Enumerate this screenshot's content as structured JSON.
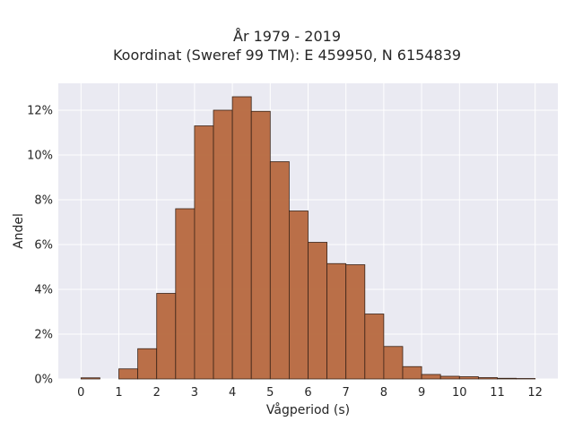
{
  "chart_data": {
    "type": "bar",
    "title": "År 1979 - 2019",
    "subtitle": "Koordinat (Sweref 99 TM): E 459950, N 6154839",
    "xlabel": "Vågperiod (s)",
    "ylabel": "Andel",
    "xlim": [
      -0.6,
      12.6
    ],
    "ylim": [
      0,
      13.2
    ],
    "x_ticks": [
      0,
      1,
      2,
      3,
      4,
      5,
      6,
      7,
      8,
      9,
      10,
      11,
      12
    ],
    "y_ticks": [
      0,
      2,
      4,
      6,
      8,
      10,
      12
    ],
    "y_tick_labels": [
      "0%",
      "2%",
      "4%",
      "6%",
      "8%",
      "10%",
      "12%"
    ],
    "bin_width": 0.5,
    "bins": [
      {
        "x": 0.0,
        "value": 0.05
      },
      {
        "x": 0.5,
        "value": 0.0
      },
      {
        "x": 1.0,
        "value": 0.45
      },
      {
        "x": 1.5,
        "value": 1.35
      },
      {
        "x": 2.0,
        "value": 3.82
      },
      {
        "x": 2.5,
        "value": 7.6
      },
      {
        "x": 3.0,
        "value": 11.3
      },
      {
        "x": 3.5,
        "value": 12.0
      },
      {
        "x": 4.0,
        "value": 12.6
      },
      {
        "x": 4.5,
        "value": 11.95
      },
      {
        "x": 5.0,
        "value": 9.7
      },
      {
        "x": 5.5,
        "value": 7.5
      },
      {
        "x": 6.0,
        "value": 6.1
      },
      {
        "x": 6.5,
        "value": 5.15
      },
      {
        "x": 7.0,
        "value": 5.1
      },
      {
        "x": 7.5,
        "value": 2.9
      },
      {
        "x": 8.0,
        "value": 1.45
      },
      {
        "x": 8.5,
        "value": 0.55
      },
      {
        "x": 9.0,
        "value": 0.2
      },
      {
        "x": 9.5,
        "value": 0.12
      },
      {
        "x": 10.0,
        "value": 0.1
      },
      {
        "x": 10.5,
        "value": 0.06
      },
      {
        "x": 11.0,
        "value": 0.03
      },
      {
        "x": 11.5,
        "value": 0.02
      }
    ],
    "grid": true,
    "colors": {
      "bar_fill": "#B5643A",
      "bar_edge": "#3a2418",
      "plot_background": "#EAEAF2",
      "grid": "#ffffff"
    }
  }
}
